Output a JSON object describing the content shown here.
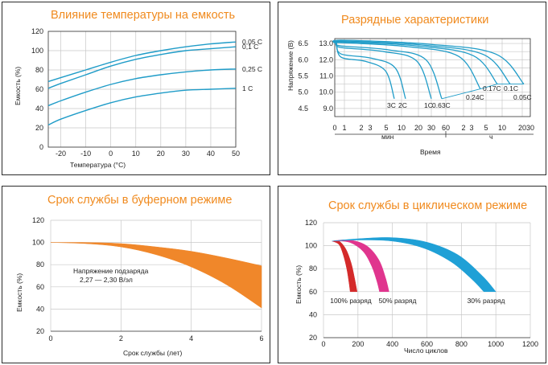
{
  "chart_data": [
    {
      "type": "line",
      "title": "Влияние температуры на емкость",
      "xlabel": "Температура (°C)",
      "ylabel": "Емкость (%)",
      "xlim": [
        -25,
        50
      ],
      "ylim": [
        0,
        120
      ],
      "x_ticks": [
        "-20",
        "-10",
        "0",
        "10",
        "20",
        "30",
        "40",
        "50"
      ],
      "y_ticks": [
        "0",
        "20",
        "40",
        "60",
        "80",
        "100",
        "120"
      ],
      "grid": true,
      "line_color": "#1f9cc8",
      "series": [
        {
          "name": "0,05 C",
          "x": [
            -25,
            -20,
            -10,
            0,
            10,
            20,
            30,
            40,
            50
          ],
          "y": [
            68,
            72,
            80,
            88,
            95,
            100,
            104,
            107,
            109
          ]
        },
        {
          "name": "0,1 C",
          "x": [
            -25,
            -20,
            -10,
            0,
            10,
            20,
            30,
            40,
            50
          ],
          "y": [
            61,
            66,
            75,
            84,
            91,
            96,
            100,
            102,
            104
          ]
        },
        {
          "name": "0,25 C",
          "x": [
            -25,
            -20,
            -10,
            0,
            10,
            20,
            30,
            40,
            50
          ],
          "y": [
            43,
            48,
            57,
            65,
            71,
            75,
            78,
            80,
            81
          ]
        },
        {
          "name": "1 C",
          "x": [
            -25,
            -20,
            -10,
            0,
            10,
            20,
            30,
            40,
            50
          ],
          "y": [
            23,
            29,
            38,
            46,
            52,
            56,
            59,
            60,
            61
          ]
        }
      ]
    },
    {
      "type": "line",
      "title": "Разрядные характеристики",
      "xlabel": "Время",
      "ylabel": "Напряжение (В)",
      "x_unit_min": "мин",
      "x_unit_hour": "ч",
      "x_ticks": [
        "0",
        "1",
        "2",
        "3",
        "5",
        "10",
        "20",
        "30",
        "60",
        "2",
        "3",
        "5",
        "10",
        "20",
        "30"
      ],
      "y_ticks_left": [
        "6.5",
        "6.0",
        "5.5",
        "5.0",
        "4.5"
      ],
      "y_ticks_right": [
        "13.0",
        "12.0",
        "11.0",
        "10.0",
        "9.0"
      ],
      "grid": true,
      "line_color": "#1f9cc8",
      "series": [
        {
          "name": "3C",
          "end_time": "8 мин",
          "end_voltage": 9.6
        },
        {
          "name": "2C",
          "end_time": "13 мин",
          "end_voltage": 9.6
        },
        {
          "name": "1C",
          "end_time": "35 мин",
          "end_voltage": 9.6
        },
        {
          "name": "0.63C",
          "end_time": "55 мин",
          "end_voltage": 9.6
        },
        {
          "name": "0.24C",
          "end_time": "3.5 ч",
          "end_voltage": 10.2
        },
        {
          "name": "0.17C",
          "end_time": "5.5 ч",
          "end_voltage": 10.5
        },
        {
          "name": "0.1C",
          "end_time": "10 ч",
          "end_voltage": 10.5
        },
        {
          "name": "0.05C",
          "end_time": "20 ч",
          "end_voltage": 10.5
        }
      ]
    },
    {
      "type": "area",
      "title": "Срок службы в буферном режиме",
      "xlabel": "Срок службы (лет)",
      "ylabel": "Емкость (%)",
      "xlim": [
        0,
        6
      ],
      "ylim": [
        20,
        120
      ],
      "x_ticks": [
        "0",
        "2",
        "4",
        "6"
      ],
      "y_ticks": [
        "20",
        "40",
        "60",
        "80",
        "100",
        "120"
      ],
      "grid": true,
      "fill_color": "#f0872a",
      "annotation": [
        "Напряжение подзаряда",
        "2,27 — 2,30 В/эл"
      ],
      "upper": {
        "x": [
          0,
          1,
          2,
          3,
          4,
          5,
          6
        ],
        "y": [
          100,
          100,
          99,
          96,
          92,
          86,
          79
        ]
      },
      "lower": {
        "x": [
          0,
          1,
          2,
          3,
          4,
          5,
          6
        ],
        "y": [
          100,
          99,
          96,
          89,
          78,
          62,
          41
        ]
      }
    },
    {
      "type": "area",
      "title": "Срок службы в циклическом режиме",
      "xlabel": "Число циклов",
      "ylabel": "Емкость (%)",
      "xlim": [
        0,
        1200
      ],
      "ylim": [
        20,
        120
      ],
      "x_ticks": [
        "0",
        "200",
        "400",
        "600",
        "800",
        "1000",
        "1200"
      ],
      "y_ticks": [
        "20",
        "40",
        "60",
        "80",
        "100",
        "120"
      ],
      "grid": true,
      "series": [
        {
          "name": "100% разряд",
          "color": "#d42a2a",
          "upper": {
            "x": [
              50,
              90,
              130,
              160,
              180,
              195
            ],
            "y": [
              104,
              104,
              97,
              85,
              72,
              60
            ]
          },
          "lower": {
            "x": [
              50,
              90,
              115,
              135,
              148,
              155
            ],
            "y": [
              104,
              101,
              92,
              80,
              68,
              60
            ]
          }
        },
        {
          "name": "50% разряд",
          "color": "#e0358e",
          "upper": {
            "x": [
              50,
              150,
              250,
              320,
              360,
              380
            ],
            "y": [
              104,
              105,
              100,
              88,
              72,
              60
            ]
          },
          "lower": {
            "x": [
              50,
              150,
              230,
              280,
              310,
              325
            ],
            "y": [
              104,
              103,
              95,
              82,
              69,
              60
            ]
          }
        },
        {
          "name": "30% разряд",
          "color": "#1fa0d6",
          "upper": {
            "x": [
              50,
              200,
              400,
              600,
              780,
              920,
              1000
            ],
            "y": [
              104,
              106,
              107,
              103,
              92,
              74,
              60
            ]
          },
          "lower": {
            "x": [
              50,
              200,
              400,
              580,
              740,
              860,
              930
            ],
            "y": [
              104,
              105,
              104,
              98,
              86,
              71,
              60
            ]
          }
        }
      ]
    }
  ]
}
